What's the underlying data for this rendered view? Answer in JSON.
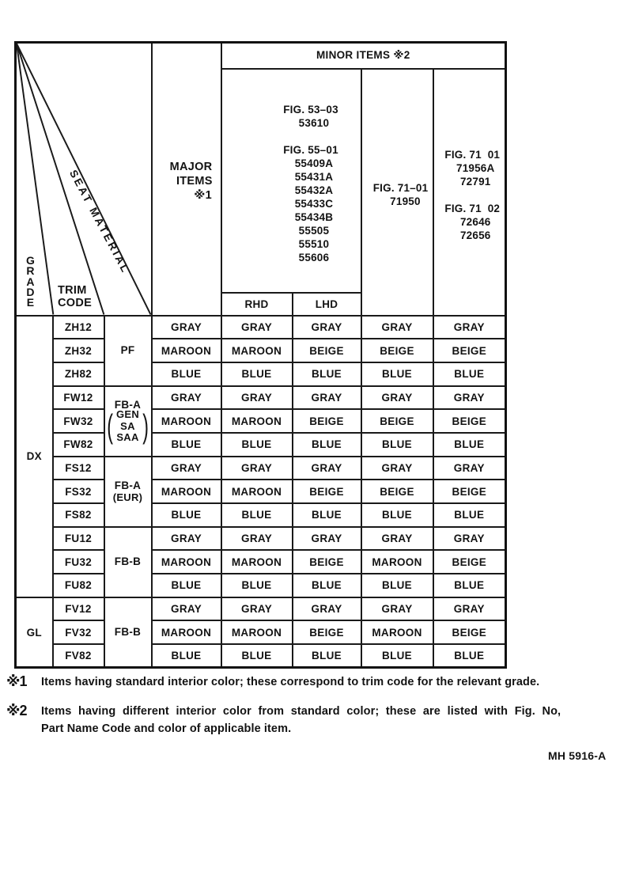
{
  "header": {
    "corner": {
      "grade": "G\nR\nA\nD\nE",
      "trim_code": "TRIM\nCODE",
      "seat_material": "SEAT MATERIAL"
    },
    "major_items": "MAJOR\n  ITEMS\n       ※1",
    "minor_items": "MINOR ITEMS ※2",
    "fig_group_1": "FIG. 53–03\n  53610\n\nFIG. 55–01\n  55409A\n  55431A\n  55432A\n  55433C\n  55434B\n  55505\n  55510\n  55606",
    "fig_group_2": "FIG. 71–01\n   71950",
    "fig_group_3": "FIG. 71  01\n  71956A\n  72791\n\nFIG. 71  02\n  72646\n  72656",
    "rhd": "RHD",
    "lhd": "LHD"
  },
  "table": {
    "grade_groups": [
      {
        "label": "DX",
        "span": 12
      },
      {
        "label": "GL",
        "span": 3
      }
    ],
    "material_groups": [
      {
        "label": "PF",
        "span": 3,
        "sub": "",
        "parens": false
      },
      {
        "label": "FB-A",
        "span": 3,
        "sub": "GEN\nSA\nSAA",
        "parens": true
      },
      {
        "label": "FB-A",
        "span": 3,
        "sub": "(EUR)",
        "parens": false
      },
      {
        "label": "FB-B",
        "span": 3,
        "sub": "",
        "parens": false
      },
      {
        "label": "FB-B",
        "span": 3,
        "sub": "",
        "parens": false
      }
    ],
    "rows": [
      {
        "trim": "ZH12",
        "major": "GRAY",
        "rhd": "GRAY",
        "lhd": "GRAY",
        "fig71_01": "GRAY",
        "fig71_02": "GRAY"
      },
      {
        "trim": "ZH32",
        "major": "MAROON",
        "rhd": "MAROON",
        "lhd": "BEIGE",
        "fig71_01": "BEIGE",
        "fig71_02": "BEIGE"
      },
      {
        "trim": "ZH82",
        "major": "BLUE",
        "rhd": "BLUE",
        "lhd": "BLUE",
        "fig71_01": "BLUE",
        "fig71_02": "BLUE"
      },
      {
        "trim": "FW12",
        "major": "GRAY",
        "rhd": "GRAY",
        "lhd": "GRAY",
        "fig71_01": "GRAY",
        "fig71_02": "GRAY"
      },
      {
        "trim": "FW32",
        "major": "MAROON",
        "rhd": "MAROON",
        "lhd": "BEIGE",
        "fig71_01": "BEIGE",
        "fig71_02": "BEIGE"
      },
      {
        "trim": "FW82",
        "major": "BLUE",
        "rhd": "BLUE",
        "lhd": "BLUE",
        "fig71_01": "BLUE",
        "fig71_02": "BLUE"
      },
      {
        "trim": "FS12",
        "major": "GRAY",
        "rhd": "GRAY",
        "lhd": "GRAY",
        "fig71_01": "GRAY",
        "fig71_02": "GRAY"
      },
      {
        "trim": "FS32",
        "major": "MAROON",
        "rhd": "MAROON",
        "lhd": "BEIGE",
        "fig71_01": "BEIGE",
        "fig71_02": "BEIGE"
      },
      {
        "trim": "FS82",
        "major": "BLUE",
        "rhd": "BLUE",
        "lhd": "BLUE",
        "fig71_01": "BLUE",
        "fig71_02": "BLUE"
      },
      {
        "trim": "FU12",
        "major": "GRAY",
        "rhd": "GRAY",
        "lhd": "GRAY",
        "fig71_01": "GRAY",
        "fig71_02": "GRAY"
      },
      {
        "trim": "FU32",
        "major": "MAROON",
        "rhd": "MAROON",
        "lhd": "BEIGE",
        "fig71_01": "MAROON",
        "fig71_02": "BEIGE"
      },
      {
        "trim": "FU82",
        "major": "BLUE",
        "rhd": "BLUE",
        "lhd": "BLUE",
        "fig71_01": "BLUE",
        "fig71_02": "BLUE"
      },
      {
        "trim": "FV12",
        "major": "GRAY",
        "rhd": "GRAY",
        "lhd": "GRAY",
        "fig71_01": "GRAY",
        "fig71_02": "GRAY"
      },
      {
        "trim": "FV32",
        "major": "MAROON",
        "rhd": "MAROON",
        "lhd": "BEIGE",
        "fig71_01": "MAROON",
        "fig71_02": "BEIGE"
      },
      {
        "trim": "FV82",
        "major": "BLUE",
        "rhd": "BLUE",
        "lhd": "BLUE",
        "fig71_01": "BLUE",
        "fig71_02": "BLUE"
      }
    ]
  },
  "footnotes": [
    {
      "marker": "※1",
      "lines": [
        "Items having standard interior color; these correspond to trim code for the relevant grade."
      ]
    },
    {
      "marker": "※2",
      "lines": [
        "Items having different interior color from standard color; these are listed with Fig. No,",
        "Part Name Code and color of applicable item."
      ]
    }
  ],
  "doc_code": "MH 5916-A",
  "colors": {
    "ink": "#131313",
    "paper": "#ffffff"
  }
}
